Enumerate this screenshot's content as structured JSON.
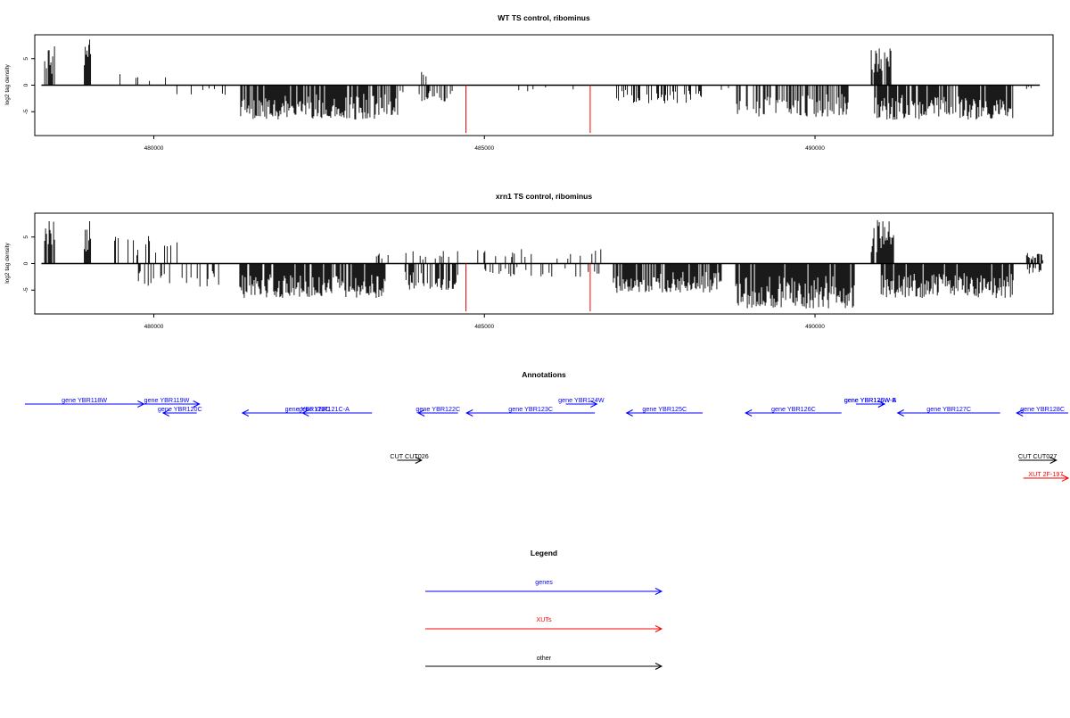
{
  "chart_data": [
    {
      "type": "bar",
      "title": "WT TS control, ribominus",
      "ylabel": "log2 tag density",
      "xlabel": "",
      "xlim": [
        478200,
        493600
      ],
      "ylim": [
        -9.5,
        9.5
      ],
      "x_ticks": [
        480000,
        485000,
        490000
      ],
      "x_tick_labels": [
        "480000",
        "485000",
        "490000"
      ],
      "y_ticks": [
        -5,
        0,
        5
      ],
      "y_tick_labels": [
        "-5",
        "0",
        "5"
      ],
      "baseline": {
        "x_start": 478300,
        "x_end": 493400,
        "y": 0
      },
      "red_markers": [
        {
          "x": 484720,
          "y_bottom": -9
        },
        {
          "x": 486600,
          "y_bottom": -9
        }
      ],
      "segments": [
        {
          "start": 478350,
          "end": 478500,
          "strand": "+",
          "max": 7.5,
          "seed": 1,
          "density": 0.9
        },
        {
          "start": 478950,
          "end": 479050,
          "strand": "+",
          "max": 8.6,
          "seed": 2,
          "density": 0.9
        },
        {
          "start": 479300,
          "end": 480400,
          "strand": "+",
          "max": 2.2,
          "seed": 3,
          "density": 0.05
        },
        {
          "start": 480350,
          "end": 481300,
          "strand": "-",
          "max": 2.0,
          "seed": 4,
          "density": 0.08
        },
        {
          "start": 481300,
          "end": 483700,
          "strand": "-",
          "max": 6.5,
          "seed": 5,
          "density": 0.85
        },
        {
          "start": 483700,
          "end": 484200,
          "strand": "-",
          "max": 1.5,
          "seed": 6,
          "density": 0.06
        },
        {
          "start": 484000,
          "end": 484600,
          "strand": "-",
          "max": 3.2,
          "seed": 7,
          "density": 0.3
        },
        {
          "start": 484050,
          "end": 484150,
          "strand": "+",
          "max": 2.6,
          "seed": 8,
          "density": 0.4
        },
        {
          "start": 484900,
          "end": 486500,
          "strand": "-",
          "max": 1.2,
          "seed": 9,
          "density": 0.05
        },
        {
          "start": 487000,
          "end": 488300,
          "strand": "-",
          "max": 3.5,
          "seed": 10,
          "density": 0.4
        },
        {
          "start": 488300,
          "end": 488800,
          "strand": "-",
          "max": 1.5,
          "seed": 11,
          "density": 0.06
        },
        {
          "start": 488800,
          "end": 490500,
          "strand": "-",
          "max": 6.0,
          "seed": 12,
          "density": 0.5
        },
        {
          "start": 490850,
          "end": 491150,
          "strand": "+",
          "max": 7.0,
          "seed": 13,
          "density": 0.8
        },
        {
          "start": 490900,
          "end": 493000,
          "strand": "-",
          "max": 6.5,
          "seed": 14,
          "density": 0.85
        },
        {
          "start": 493200,
          "end": 493300,
          "strand": "-",
          "max": 1.0,
          "seed": 15,
          "density": 0.3
        }
      ]
    },
    {
      "type": "bar",
      "title": "xrn1 TS control, ribominus",
      "ylabel": "log2 tag density",
      "xlabel": "",
      "xlim": [
        478200,
        493600
      ],
      "ylim": [
        -9.5,
        9.5
      ],
      "x_ticks": [
        480000,
        485000,
        490000
      ],
      "x_tick_labels": [
        "480000",
        "485000",
        "490000"
      ],
      "y_ticks": [
        -5,
        0,
        5
      ],
      "y_tick_labels": [
        "-5",
        "0",
        "5"
      ],
      "baseline": {
        "x_start": 478300,
        "x_end": 493400,
        "y": 0
      },
      "red_markers": [
        {
          "x": 484720,
          "y_bottom": -9
        },
        {
          "x": 486600,
          "y_bottom": -9
        }
      ],
      "segments": [
        {
          "start": 478350,
          "end": 478500,
          "strand": "+",
          "max": 8.0,
          "seed": 21,
          "density": 0.9
        },
        {
          "start": 478950,
          "end": 479050,
          "strand": "+",
          "max": 8.0,
          "seed": 22,
          "density": 0.9
        },
        {
          "start": 479300,
          "end": 480400,
          "strand": "+",
          "max": 5.5,
          "seed": 23,
          "density": 0.3
        },
        {
          "start": 479700,
          "end": 481000,
          "strand": "-",
          "max": 4.5,
          "seed": 24,
          "density": 0.25
        },
        {
          "start": 481300,
          "end": 483500,
          "strand": "-",
          "max": 6.5,
          "seed": 25,
          "density": 0.9
        },
        {
          "start": 483300,
          "end": 484600,
          "strand": "+",
          "max": 2.5,
          "seed": 26,
          "density": 0.15
        },
        {
          "start": 483800,
          "end": 484600,
          "strand": "-",
          "max": 5.0,
          "seed": 27,
          "density": 0.6
        },
        {
          "start": 484900,
          "end": 486800,
          "strand": "+",
          "max": 2.8,
          "seed": 28,
          "density": 0.12
        },
        {
          "start": 484900,
          "end": 486800,
          "strand": "-",
          "max": 2.5,
          "seed": 29,
          "density": 0.18
        },
        {
          "start": 486950,
          "end": 488600,
          "strand": "-",
          "max": 5.5,
          "seed": 30,
          "density": 0.8
        },
        {
          "start": 488800,
          "end": 490600,
          "strand": "-",
          "max": 8.5,
          "seed": 31,
          "density": 0.9
        },
        {
          "start": 490850,
          "end": 491200,
          "strand": "+",
          "max": 8.2,
          "seed": 32,
          "density": 0.85
        },
        {
          "start": 491000,
          "end": 493000,
          "strand": "-",
          "max": 6.5,
          "seed": 33,
          "density": 0.9
        },
        {
          "start": 493200,
          "end": 493450,
          "strand": "+",
          "max": 2.0,
          "seed": 34,
          "density": 0.4
        },
        {
          "start": 493200,
          "end": 493450,
          "strand": "-",
          "max": 2.0,
          "seed": 35,
          "density": 0.4
        }
      ]
    }
  ],
  "annotations": {
    "title": "Annotations",
    "items": [
      {
        "label": "gene YBR118W",
        "start": 478050,
        "end": 479850,
        "strand": "+",
        "color": "#0000ff",
        "row": 0
      },
      {
        "label": "gene YBR119W",
        "start": 479700,
        "end": 480690,
        "strand": "+",
        "color": "#0000ff",
        "row": 0
      },
      {
        "label": "gene YBR120C",
        "start": 480140,
        "end": 480650,
        "strand": "-",
        "color": "#0000ff",
        "row": 1
      },
      {
        "label": "gene YBR121C",
        "start": 481340,
        "end": 483300,
        "strand": "-",
        "color": "#0000ff",
        "row": 1
      },
      {
        "label": "gene YBR121C-A",
        "start": 482250,
        "end": 482900,
        "strand": "-",
        "color": "#0000ff",
        "row": 1
      },
      {
        "label": "gene YBR122C",
        "start": 484000,
        "end": 484600,
        "strand": "-",
        "color": "#0000ff",
        "row": 1
      },
      {
        "label": "gene YBR123C",
        "start": 484730,
        "end": 486670,
        "strand": "-",
        "color": "#0000ff",
        "row": 1
      },
      {
        "label": "gene YBR124W",
        "start": 486230,
        "end": 486700,
        "strand": "+",
        "color": "#0000ff",
        "row": 0
      },
      {
        "label": "gene YBR125C",
        "start": 487150,
        "end": 488300,
        "strand": "-",
        "color": "#0000ff",
        "row": 1
      },
      {
        "label": "gene YBR126C",
        "start": 488950,
        "end": 490400,
        "strand": "-",
        "color": "#0000ff",
        "row": 1
      },
      {
        "label": "gene YBR126W-A",
        "start": 490620,
        "end": 491050,
        "strand": "+",
        "color": "#0000ff",
        "row": 0
      },
      {
        "label": "gene YBR126W-B",
        "start": 490620,
        "end": 491050,
        "strand": "+",
        "color": "#0000ff",
        "row": 0
      },
      {
        "label": "gene YBR127C",
        "start": 491250,
        "end": 492800,
        "strand": "-",
        "color": "#0000ff",
        "row": 1
      },
      {
        "label": "gene YBR128C",
        "start": 493050,
        "end": 494000,
        "strand": "-",
        "color": "#0000ff",
        "row": 1
      },
      {
        "label": "CUT CUT026",
        "start": 483680,
        "end": 484050,
        "strand": "+",
        "color": "#000000",
        "row": 2
      },
      {
        "label": "CUT CUT027",
        "start": 493080,
        "end": 493650,
        "strand": "+",
        "color": "#000000",
        "row": 2
      },
      {
        "label": "XUT 2F-197",
        "start": 493150,
        "end": 493850,
        "strand": "+",
        "color": "#ff0000",
        "row": 3
      }
    ]
  },
  "legend": {
    "title": "Legend",
    "entries": [
      {
        "label": "genes",
        "color": "#0000ff"
      },
      {
        "label": "XUTs",
        "color": "#ff0000"
      },
      {
        "label": "other",
        "color": "#000000"
      }
    ]
  }
}
